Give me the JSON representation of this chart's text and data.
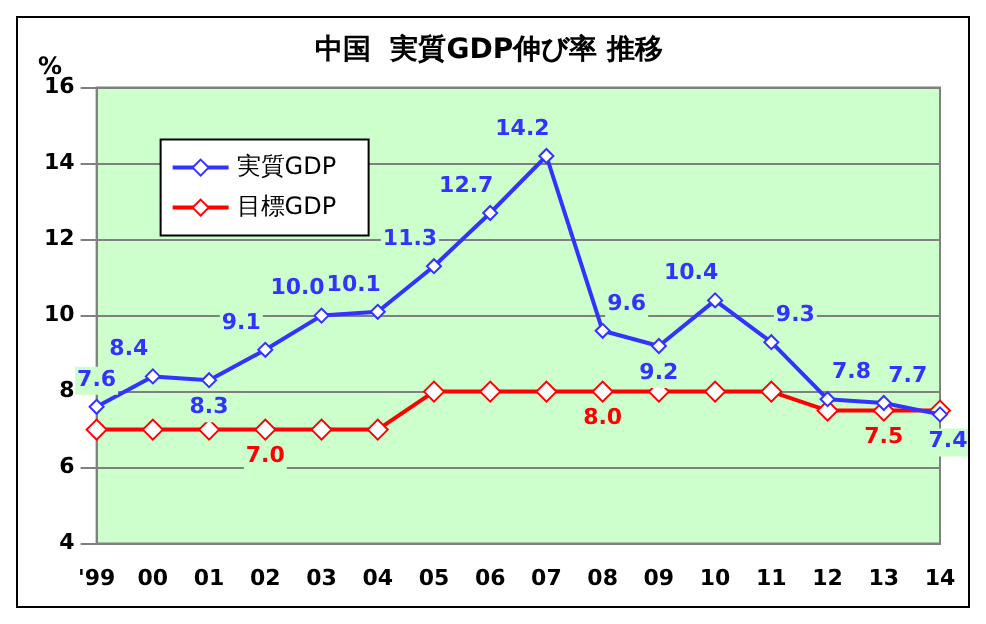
{
  "chart_data": {
    "type": "line",
    "title": "中国  実質GDP伸び率 推移",
    "ylabel": "%",
    "categories": [
      "'99",
      "00",
      "01",
      "02",
      "03",
      "04",
      "05",
      "06",
      "07",
      "08",
      "09",
      "10",
      "11",
      "12",
      "13",
      "14"
    ],
    "series": [
      {
        "name": "実質GDP",
        "color": "#3333ff",
        "values": [
          7.6,
          8.4,
          8.3,
          9.1,
          10.0,
          10.1,
          11.3,
          12.7,
          14.2,
          9.6,
          9.2,
          10.4,
          9.3,
          7.8,
          7.7,
          7.4
        ],
        "value_labels": [
          "7.6",
          "8.4",
          "8.3",
          "9.1",
          "10.0",
          "10.1",
          "11.3",
          "12.7",
          "14.2",
          "9.6",
          "9.2",
          "10.4",
          "9.3",
          "7.8",
          "7.7",
          "7.4"
        ]
      },
      {
        "name": "目標GDP",
        "color": "#ff0000",
        "values": [
          7,
          7,
          7,
          7,
          7,
          7,
          8,
          8,
          8,
          8,
          8,
          8,
          8,
          7.5,
          7.5,
          7.5
        ],
        "value_labels": [
          null,
          null,
          null,
          "7.0",
          null,
          null,
          null,
          null,
          null,
          "8.0",
          null,
          null,
          null,
          null,
          "7.5",
          null
        ]
      }
    ],
    "ylim": [
      4,
      16
    ],
    "yticks": [
      4,
      6,
      8,
      10,
      12,
      14,
      16
    ],
    "grid": "y",
    "legend": "top left",
    "marker": "diamond",
    "line_style": "solid"
  }
}
